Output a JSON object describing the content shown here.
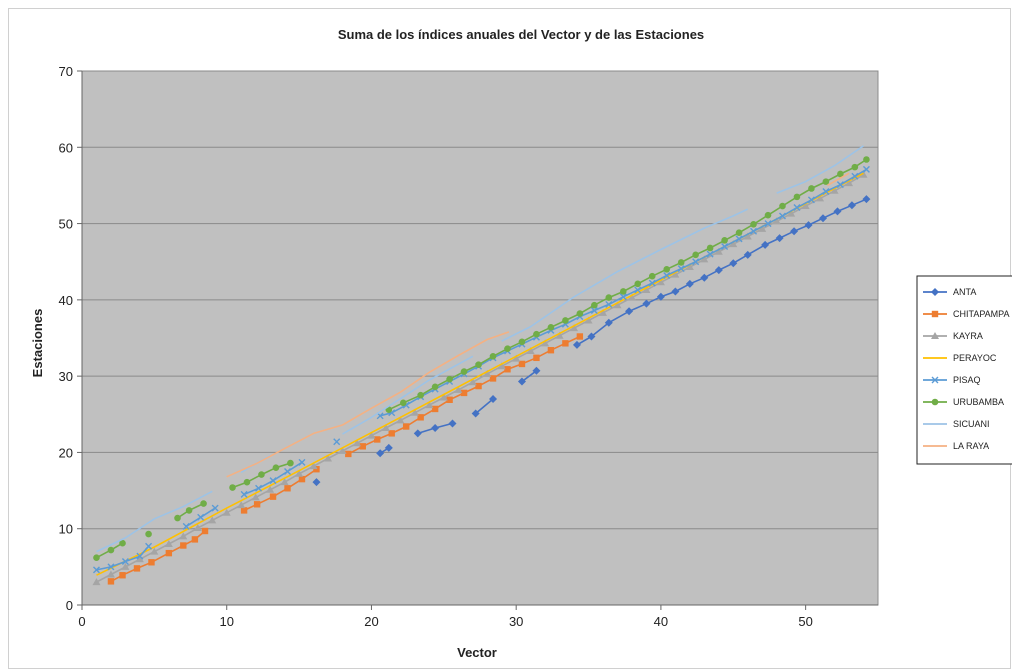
{
  "chart_data": {
    "type": "line",
    "title": "Suma de los índices anuales del Vector y de las Estaciones",
    "xlabel": "Vector",
    "ylabel": "Estaciones",
    "xlim": [
      0,
      55
    ],
    "ylim": [
      0,
      70
    ],
    "x_ticks": [
      "0",
      "10",
      "20",
      "30",
      "40",
      "50"
    ],
    "y_ticks": [
      "0",
      "10",
      "20",
      "30",
      "40",
      "50",
      "60",
      "70"
    ],
    "grid": "horizontal",
    "plot_background": "#c0c0c0",
    "legend_position": "right",
    "series": [
      {
        "name": "ANTA",
        "color": "#4472c4",
        "marker": "diamond",
        "segments": [
          [
            [
              16.2,
              16.1
            ]
          ],
          [
            [
              20.6,
              19.9
            ],
            [
              21.2,
              20.6
            ]
          ],
          [
            [
              23.2,
              22.5
            ],
            [
              24.4,
              23.2
            ],
            [
              25.6,
              23.8
            ]
          ],
          [
            [
              27.2,
              25.1
            ],
            [
              28.4,
              27.0
            ]
          ],
          [
            [
              30.4,
              29.3
            ],
            [
              31.4,
              30.7
            ]
          ],
          [
            [
              34.2,
              34.1
            ],
            [
              35.2,
              35.2
            ],
            [
              36.4,
              37.0
            ],
            [
              37.8,
              38.5
            ],
            [
              39.0,
              39.5
            ],
            [
              40.0,
              40.4
            ],
            [
              41.0,
              41.1
            ],
            [
              42.0,
              42.1
            ],
            [
              43.0,
              42.9
            ],
            [
              44.0,
              43.9
            ],
            [
              45.0,
              44.8
            ],
            [
              46.0,
              45.9
            ],
            [
              47.2,
              47.2
            ],
            [
              48.2,
              48.1
            ],
            [
              49.2,
              49.0
            ],
            [
              50.2,
              49.8
            ],
            [
              51.2,
              50.7
            ],
            [
              52.2,
              51.6
            ],
            [
              53.2,
              52.4
            ],
            [
              54.2,
              53.2
            ]
          ]
        ]
      },
      {
        "name": "CHITAPAMPA",
        "color": "#ed7d31",
        "marker": "square",
        "segments": [
          [
            [
              2.0,
              3.1
            ],
            [
              2.8,
              3.9
            ],
            [
              3.8,
              4.8
            ],
            [
              4.8,
              5.6
            ],
            [
              6.0,
              6.8
            ],
            [
              7.0,
              7.8
            ],
            [
              7.8,
              8.6
            ],
            [
              8.5,
              9.7
            ]
          ],
          [
            [
              11.2,
              12.4
            ],
            [
              12.1,
              13.2
            ],
            [
              13.2,
              14.2
            ],
            [
              14.2,
              15.3
            ],
            [
              15.2,
              16.5
            ],
            [
              16.2,
              17.8
            ]
          ],
          [
            [
              18.4,
              19.8
            ],
            [
              19.4,
              20.8
            ],
            [
              20.4,
              21.7
            ],
            [
              21.4,
              22.5
            ],
            [
              22.4,
              23.4
            ],
            [
              23.4,
              24.6
            ],
            [
              24.4,
              25.7
            ],
            [
              25.4,
              26.9
            ],
            [
              26.4,
              27.8
            ],
            [
              27.4,
              28.7
            ],
            [
              28.4,
              29.7
            ],
            [
              29.4,
              30.9
            ],
            [
              30.4,
              31.6
            ],
            [
              31.4,
              32.4
            ],
            [
              32.4,
              33.4
            ],
            [
              33.4,
              34.3
            ],
            [
              34.4,
              35.2
            ]
          ]
        ]
      },
      {
        "name": "KAYRA",
        "color": "#a5a5a5",
        "marker": "triangle",
        "segments": [
          [
            [
              1.0,
              3.0
            ],
            [
              2.0,
              4.0
            ],
            [
              3.0,
              5.0
            ],
            [
              4.0,
              6.0
            ],
            [
              5.0,
              7.0
            ],
            [
              6.0,
              8.0
            ],
            [
              7.0,
              9.0
            ],
            [
              8.0,
              10.1
            ],
            [
              9.0,
              11.1
            ],
            [
              10.0,
              12.1
            ],
            [
              11.0,
              13.1
            ],
            [
              12.0,
              14.1
            ],
            [
              13.0,
              15.1
            ],
            [
              14.0,
              16.1
            ],
            [
              15.0,
              17.2
            ],
            [
              16.0,
              18.2
            ],
            [
              17.0,
              19.2
            ],
            [
              18.0,
              20.2
            ],
            [
              19.0,
              21.2
            ],
            [
              20.0,
              22.2
            ],
            [
              21.0,
              23.2
            ],
            [
              22.0,
              24.2
            ],
            [
              23.0,
              25.2
            ],
            [
              24.0,
              26.2
            ],
            [
              25.0,
              27.2
            ],
            [
              26.0,
              28.2
            ],
            [
              27.0,
              29.2
            ],
            [
              28.0,
              30.3
            ],
            [
              29.0,
              31.3
            ],
            [
              30.0,
              32.3
            ],
            [
              31.0,
              33.3
            ],
            [
              32.0,
              34.3
            ],
            [
              33.0,
              35.3
            ],
            [
              34.0,
              36.3
            ],
            [
              35.0,
              37.3
            ],
            [
              36.0,
              38.3
            ],
            [
              37.0,
              39.3
            ],
            [
              38.0,
              40.3
            ],
            [
              39.0,
              41.3
            ],
            [
              40.0,
              42.3
            ],
            [
              41.0,
              43.3
            ],
            [
              42.0,
              44.3
            ],
            [
              43.0,
              45.3
            ],
            [
              44.0,
              46.3
            ],
            [
              45.0,
              47.3
            ],
            [
              46.0,
              48.3
            ],
            [
              47.0,
              49.3
            ],
            [
              48.0,
              50.3
            ],
            [
              49.0,
              51.3
            ],
            [
              50.0,
              52.3
            ],
            [
              51.0,
              53.3
            ],
            [
              52.0,
              54.3
            ],
            [
              53.0,
              55.3
            ],
            [
              54.0,
              56.4
            ]
          ]
        ]
      },
      {
        "name": "PERAYOC",
        "color": "#ffc000",
        "marker": "none",
        "segments": [
          [
            [
              1.0,
              3.9
            ],
            [
              5.0,
              7.6
            ],
            [
              10.0,
              12.7
            ],
            [
              15.0,
              17.6
            ],
            [
              20.0,
              22.6
            ],
            [
              25.0,
              27.6
            ],
            [
              30.0,
              32.6
            ],
            [
              35.0,
              37.6
            ],
            [
              40.0,
              42.6
            ],
            [
              45.0,
              47.6
            ],
            [
              50.0,
              52.6
            ],
            [
              54.0,
              56.6
            ]
          ]
        ]
      },
      {
        "name": "PISAQ",
        "color": "#5b9bd5",
        "marker": "x",
        "segments": [
          [
            [
              1.0,
              4.6
            ],
            [
              2.0,
              5.0
            ],
            [
              3.0,
              5.7
            ],
            [
              4.0,
              6.4
            ],
            [
              4.6,
              7.7
            ]
          ],
          [
            [
              7.2,
              10.3
            ],
            [
              8.2,
              11.5
            ],
            [
              9.2,
              12.7
            ]
          ],
          [
            [
              11.2,
              14.5
            ],
            [
              12.2,
              15.3
            ],
            [
              13.2,
              16.3
            ],
            [
              14.2,
              17.5
            ],
            [
              15.2,
              18.7
            ]
          ],
          [
            [
              17.6,
              21.4
            ]
          ],
          [
            [
              20.6,
              24.8
            ],
            [
              21.4,
              25.2
            ],
            [
              22.4,
              26.2
            ],
            [
              23.4,
              27.3
            ],
            [
              24.4,
              28.3
            ],
            [
              25.4,
              29.3
            ],
            [
              26.4,
              30.3
            ],
            [
              27.4,
              31.3
            ],
            [
              28.4,
              32.4
            ],
            [
              29.4,
              33.3
            ],
            [
              30.4,
              34.2
            ],
            [
              31.4,
              35.1
            ],
            [
              32.4,
              36.0
            ],
            [
              33.4,
              36.8
            ],
            [
              34.4,
              37.8
            ],
            [
              35.4,
              38.6
            ],
            [
              36.4,
              39.4
            ],
            [
              37.4,
              40.4
            ],
            [
              38.4,
              41.3
            ],
            [
              39.4,
              42.2
            ],
            [
              40.4,
              43.2
            ],
            [
              41.4,
              44.1
            ],
            [
              42.4,
              45.0
            ],
            [
              43.4,
              46.0
            ],
            [
              44.4,
              47.0
            ],
            [
              45.4,
              48.0
            ],
            [
              46.4,
              49.0
            ],
            [
              47.4,
              50.0
            ],
            [
              48.4,
              51.0
            ],
            [
              49.4,
              52.1
            ],
            [
              50.4,
              53.1
            ],
            [
              51.4,
              54.2
            ],
            [
              52.4,
              55.1
            ],
            [
              53.4,
              56.2
            ],
            [
              54.2,
              57.1
            ]
          ]
        ]
      },
      {
        "name": "URUBAMBA",
        "color": "#70ad47",
        "marker": "circle",
        "segments": [
          [
            [
              1.0,
              6.2
            ],
            [
              2.0,
              7.2
            ],
            [
              2.8,
              8.1
            ]
          ],
          [
            [
              4.6,
              9.3
            ]
          ],
          [
            [
              6.6,
              11.4
            ],
            [
              7.4,
              12.4
            ],
            [
              8.4,
              13.3
            ]
          ],
          [
            [
              10.4,
              15.4
            ],
            [
              11.4,
              16.1
            ],
            [
              12.4,
              17.1
            ],
            [
              13.4,
              18.0
            ],
            [
              14.4,
              18.6
            ]
          ],
          [
            [
              21.2,
              25.6
            ],
            [
              22.2,
              26.5
            ],
            [
              23.4,
              27.5
            ],
            [
              24.4,
              28.6
            ],
            [
              25.4,
              29.6
            ],
            [
              26.4,
              30.6
            ],
            [
              27.4,
              31.5
            ],
            [
              28.4,
              32.6
            ],
            [
              29.4,
              33.6
            ],
            [
              30.4,
              34.5
            ],
            [
              31.4,
              35.5
            ],
            [
              32.4,
              36.4
            ],
            [
              33.4,
              37.3
            ],
            [
              34.4,
              38.2
            ],
            [
              35.4,
              39.3
            ],
            [
              36.4,
              40.3
            ],
            [
              37.4,
              41.1
            ],
            [
              38.4,
              42.1
            ],
            [
              39.4,
              43.1
            ],
            [
              40.4,
              44.0
            ],
            [
              41.4,
              44.9
            ],
            [
              42.4,
              45.9
            ],
            [
              43.4,
              46.8
            ],
            [
              44.4,
              47.8
            ],
            [
              45.4,
              48.8
            ],
            [
              46.4,
              49.9
            ],
            [
              47.4,
              51.1
            ],
            [
              48.4,
              52.3
            ],
            [
              49.4,
              53.5
            ],
            [
              50.4,
              54.6
            ],
            [
              51.4,
              55.5
            ],
            [
              52.4,
              56.5
            ],
            [
              53.4,
              57.4
            ],
            [
              54.2,
              58.4
            ]
          ]
        ]
      },
      {
        "name": "SICUANI",
        "color": "#9dc3e6",
        "marker": "none",
        "segments": [
          [
            [
              1.0,
              7.0
            ],
            [
              3.0,
              8.8
            ],
            [
              5.0,
              11.3
            ],
            [
              7.0,
              12.9
            ],
            [
              9.0,
              14.9
            ]
          ],
          [
            [
              11.0,
              17.4
            ],
            [
              13.0,
              19.6
            ]
          ],
          [
            [
              18.0,
              22.4
            ],
            [
              20.0,
              24.6
            ],
            [
              24.0,
              29.5
            ],
            [
              27.0,
              32.6
            ]
          ],
          [
            [
              29.0,
              34.6
            ],
            [
              31.0,
              36.5
            ],
            [
              34.0,
              40.4
            ],
            [
              37.0,
              43.7
            ],
            [
              40.0,
              46.6
            ],
            [
              43.0,
              49.4
            ],
            [
              45.0,
              51.0
            ],
            [
              46.0,
              51.9
            ]
          ],
          [
            [
              48.0,
              54.0
            ],
            [
              50.0,
              55.5
            ],
            [
              52.0,
              57.6
            ],
            [
              54.0,
              60.2
            ]
          ]
        ]
      },
      {
        "name": "LA RAYA",
        "color": "#f4b183",
        "marker": "none",
        "segments": [
          [
            [
              10.0,
              16.8
            ],
            [
              12.0,
              18.5
            ],
            [
              14.0,
              20.5
            ],
            [
              16.0,
              22.5
            ],
            [
              18.0,
              23.6
            ],
            [
              20.0,
              25.8
            ],
            [
              22.0,
              27.9
            ],
            [
              24.0,
              30.5
            ],
            [
              26.0,
              32.7
            ],
            [
              28.0,
              34.8
            ],
            [
              29.5,
              35.8
            ]
          ],
          [
            [
              51.5,
              55.0
            ],
            [
              53.0,
              56.6
            ]
          ]
        ]
      }
    ]
  }
}
